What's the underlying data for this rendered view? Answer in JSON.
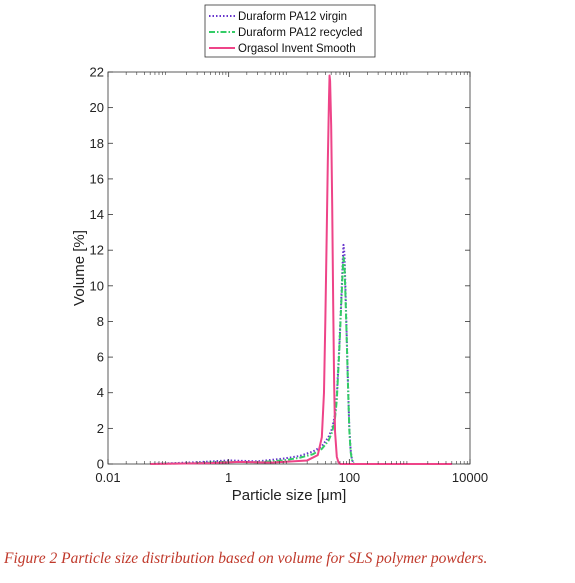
{
  "caption": "Figure 2  Particle size distribution based on volume for SLS polymer powders.",
  "chart_data": {
    "type": "line",
    "xlabel_prefix": "Particle size [",
    "xlabel_unit": "μm",
    "xlabel_suffix": "]",
    "ylabel": "Volume [%]",
    "x_scale": "log",
    "xlim": [
      0.01,
      10000
    ],
    "ylim": [
      0,
      22
    ],
    "x_ticks": [
      {
        "value": 0.01,
        "label": "0.01"
      },
      {
        "value": 1,
        "label": "1"
      },
      {
        "value": 100,
        "label": "100"
      },
      {
        "value": 10000,
        "label": "10000"
      }
    ],
    "y_ticks": [
      0,
      2,
      4,
      6,
      8,
      10,
      12,
      14,
      16,
      18,
      20,
      22
    ],
    "grid": false,
    "legend_position": "top-center",
    "series": [
      {
        "name": "Duraform PA12 virgin",
        "color": "#6633cc",
        "style": "dotted",
        "x": [
          0.05,
          0.3,
          1.0,
          3.0,
          8,
          15,
          25,
          35,
          45,
          52,
          58,
          62,
          65,
          68,
          70,
          72,
          75,
          78,
          80,
          83,
          86,
          90,
          95,
          100,
          105,
          110,
          115,
          120,
          130,
          5000
        ],
        "y": [
          0,
          0.1,
          0.2,
          0.15,
          0.3,
          0.45,
          0.7,
          1.0,
          1.5,
          2.0,
          2.8,
          3.8,
          5.2,
          6.5,
          7.5,
          8.5,
          10.0,
          11.5,
          12.3,
          11.8,
          10.0,
          7.5,
          4.5,
          2.0,
          0.8,
          0.3,
          0.1,
          0,
          0,
          0
        ]
      },
      {
        "name": "Duraform PA12 recycled",
        "color": "#33cc66",
        "style": "dashdot",
        "x": [
          0.05,
          0.3,
          1.0,
          3.0,
          8,
          15,
          25,
          35,
          45,
          52,
          58,
          62,
          65,
          68,
          70,
          72,
          75,
          78,
          80,
          83,
          86,
          90,
          95,
          100,
          105,
          110,
          115,
          120,
          130,
          5000
        ],
        "y": [
          0,
          0.05,
          0.12,
          0.1,
          0.2,
          0.35,
          0.55,
          0.85,
          1.3,
          1.8,
          2.6,
          3.6,
          5.0,
          6.3,
          7.3,
          8.3,
          9.7,
          11.0,
          11.6,
          11.2,
          9.6,
          7.3,
          4.4,
          1.9,
          0.7,
          0.25,
          0.08,
          0,
          0,
          0
        ]
      },
      {
        "name": "Orgasol Invent Smooth",
        "color": "#ee4488",
        "style": "solid",
        "x": [
          0.05,
          0.5,
          1.5,
          5,
          20,
          30,
          35,
          38,
          40,
          42,
          44,
          46,
          47,
          48,
          50,
          52,
          54,
          56,
          58,
          62,
          66,
          70,
          75,
          5000
        ],
        "y": [
          0,
          0.05,
          0.12,
          0.08,
          0.2,
          0.5,
          1.5,
          4.0,
          8.0,
          12.5,
          17.0,
          20.5,
          21.8,
          21.5,
          19.0,
          14.5,
          9.0,
          4.5,
          1.8,
          0.4,
          0.1,
          0,
          0,
          0
        ]
      }
    ]
  }
}
